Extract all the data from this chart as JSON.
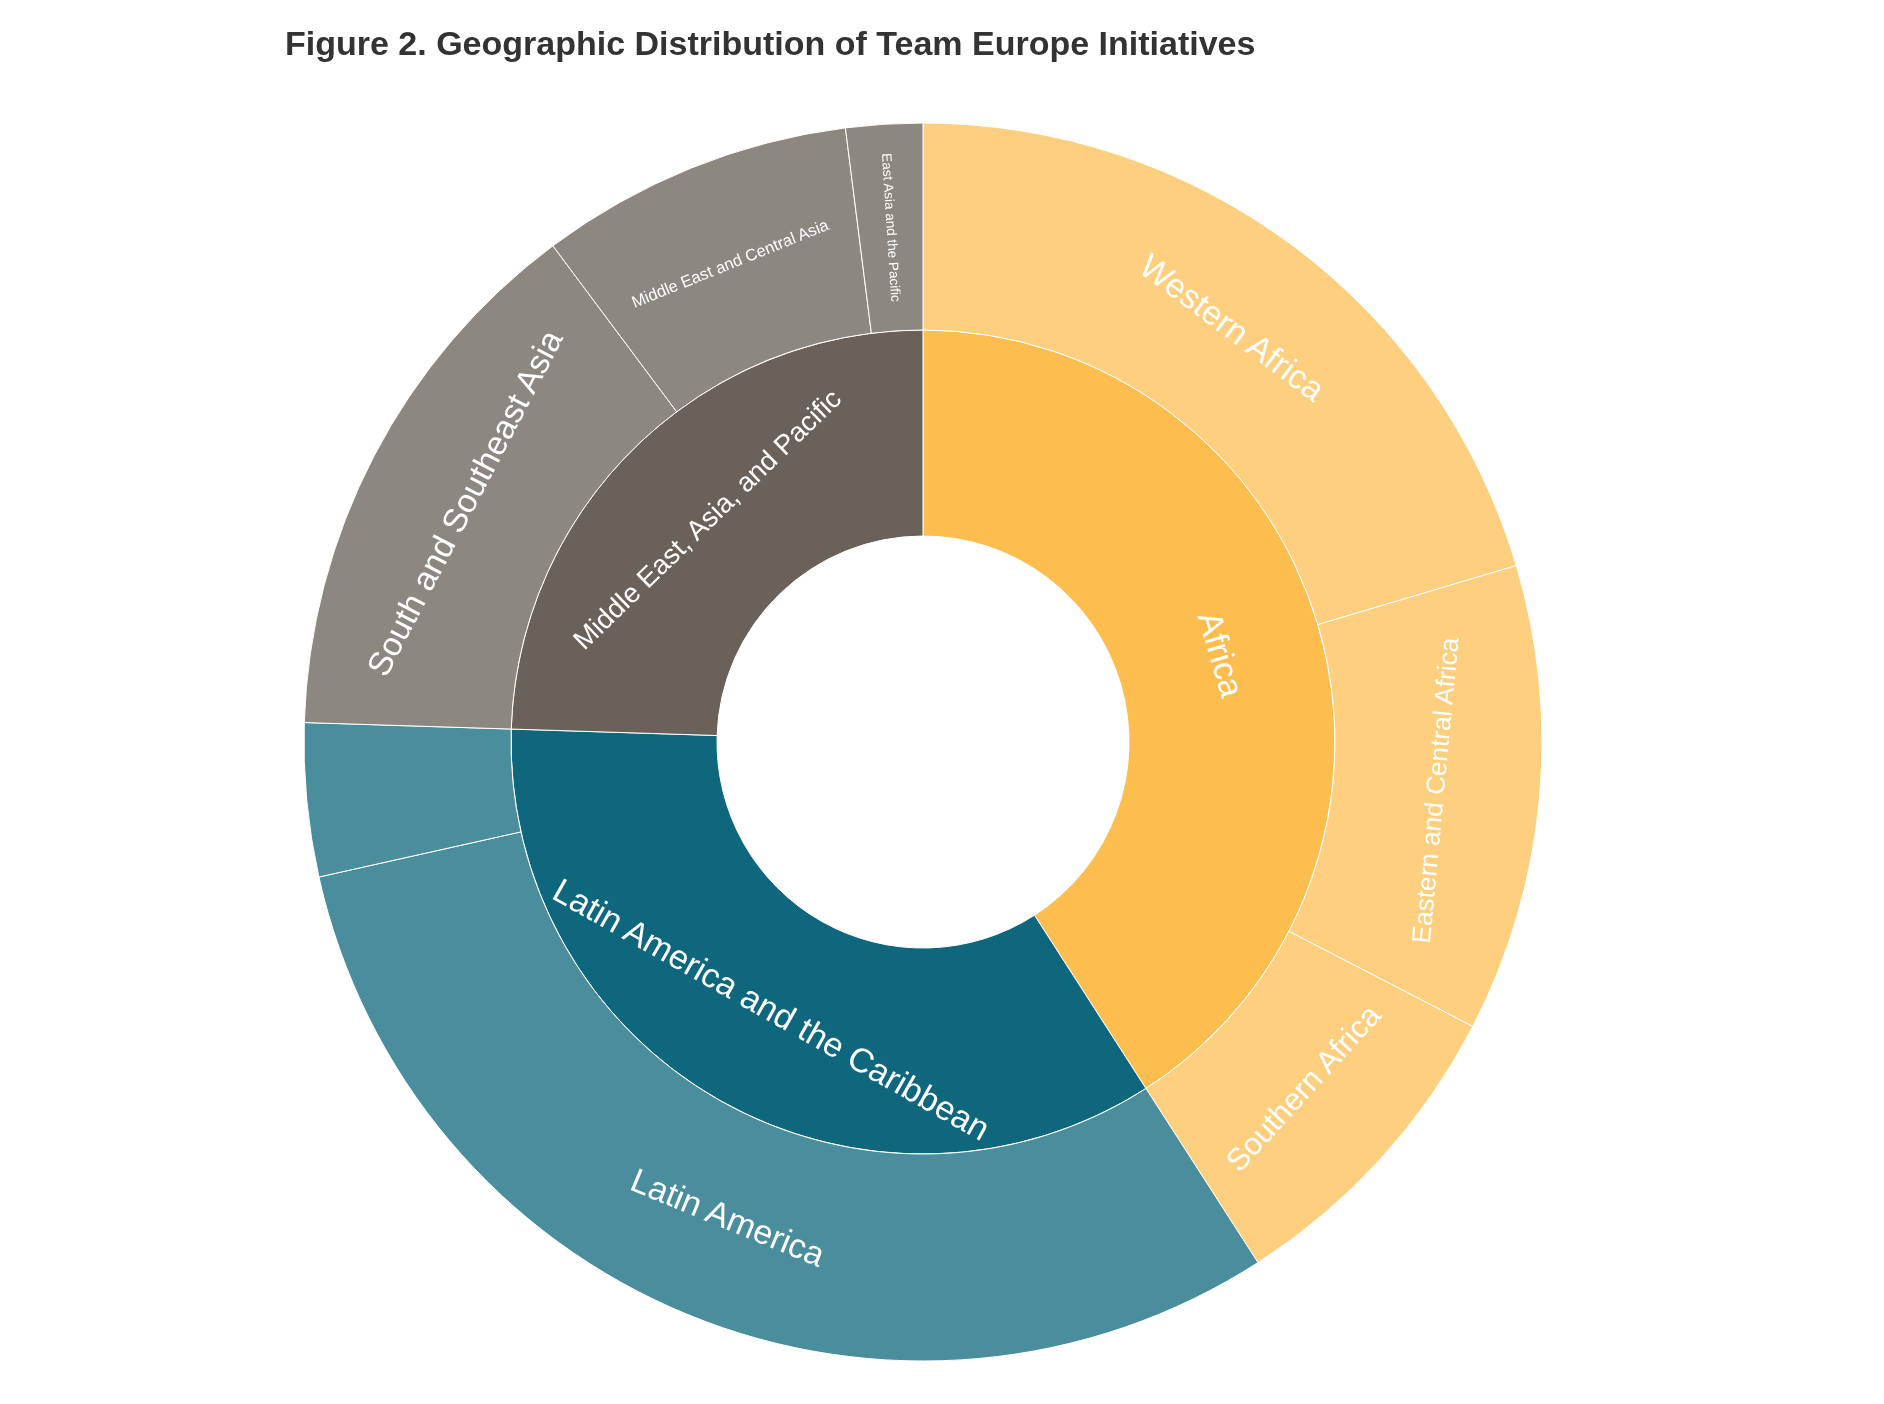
{
  "chart_data": [
    {
      "type": "donut",
      "title": "Figure 2. Geographic Distribution of Team Europe Initiatives",
      "categories": [
        "Africa",
        "Latin America and the Caribbean",
        "Middle East, Asia, and Pacific"
      ],
      "values": [
        40.9,
        34.6,
        24.5
      ],
      "colors": [
        "#fdbe4f",
        "#0e677d",
        "#6a615b"
      ]
    },
    {
      "type": "donut",
      "categories": [
        "Western Africa",
        "Eastern and Central Africa",
        "Southern Africa",
        "Latin America",
        null,
        "South and Southeast Asia",
        "Middle East and Central Asia",
        "East Asia and the Pacific"
      ],
      "values": [
        20.4,
        12.2,
        8.3,
        30.6,
        4.0,
        14.3,
        8.2,
        2.0
      ],
      "colors": [
        "#fecf7f",
        "#fecf7f",
        "#fecf7f",
        "#4a8d9d",
        "#4a8d9d",
        "#8c8780",
        "#8c8780",
        "#8c8780"
      ]
    }
  ]
}
